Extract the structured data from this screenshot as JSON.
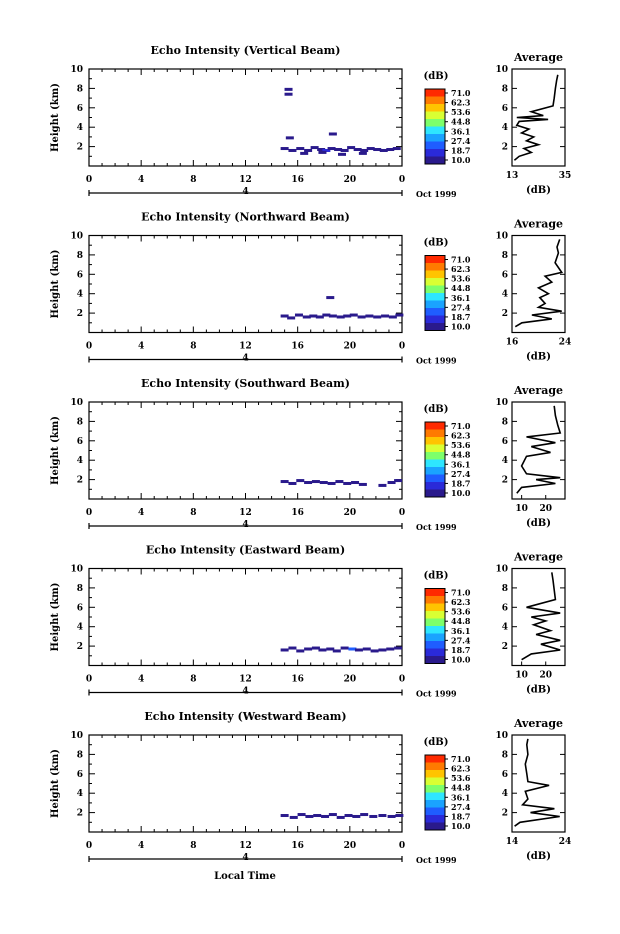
{
  "figure": {
    "xlabel": "Local Time",
    "date_label": "Oct 1999",
    "day_label": "4"
  },
  "colorbar": {
    "unit": "(dB)",
    "ticks": [
      "71.0",
      "62.3",
      "53.6",
      "44.8",
      "36.1",
      "27.4",
      "18.7",
      "10.0"
    ],
    "colors": [
      "#ff2a00",
      "#ff7a00",
      "#ffc400",
      "#d9ff33",
      "#7dff6b",
      "#2ee6ff",
      "#1aa3ff",
      "#1f5dff",
      "#2a2ad9",
      "#2a1a8c"
    ]
  },
  "chart_data": [
    {
      "type": "heatmap",
      "title": "Echo Intensity (Vertical Beam)",
      "ylabel": "Height (km)",
      "xticks": [
        "0",
        "4",
        "8",
        "12",
        "16",
        "20",
        "0"
      ],
      "yticks": [
        "2",
        "4",
        "6",
        "8",
        "10"
      ],
      "xlim": [
        0,
        24
      ],
      "ylim": [
        0,
        10
      ],
      "points": [
        [
          15.0,
          1.8,
          14
        ],
        [
          15.6,
          1.6,
          13
        ],
        [
          16.2,
          1.8,
          15
        ],
        [
          16.8,
          1.6,
          13
        ],
        [
          17.3,
          1.9,
          15
        ],
        [
          17.8,
          1.7,
          14
        ],
        [
          18.2,
          1.6,
          22
        ],
        [
          18.6,
          1.8,
          16
        ],
        [
          19.1,
          1.7,
          13
        ],
        [
          19.6,
          1.6,
          15
        ],
        [
          20.1,
          1.9,
          14
        ],
        [
          20.6,
          1.7,
          16
        ],
        [
          21.1,
          1.6,
          13
        ],
        [
          21.6,
          1.8,
          14
        ],
        [
          22.1,
          1.7,
          15
        ],
        [
          22.6,
          1.6,
          13
        ],
        [
          23.1,
          1.7,
          14
        ],
        [
          23.6,
          1.8,
          13
        ],
        [
          16.5,
          1.3,
          12
        ],
        [
          17.9,
          1.4,
          12
        ],
        [
          19.4,
          1.2,
          11
        ],
        [
          21.0,
          1.3,
          12
        ],
        [
          18.7,
          3.3,
          12
        ],
        [
          15.4,
          2.9,
          11
        ],
        [
          15.3,
          7.9,
          13
        ],
        [
          15.3,
          7.4,
          12
        ]
      ],
      "average": {
        "xticks": [
          "13",
          "35"
        ],
        "xlim": [
          13,
          35
        ],
        "xlabel": "(dB)",
        "title": "Average",
        "profile": [
          [
            14.0,
            0.6
          ],
          [
            16.0,
            1.0
          ],
          [
            21.0,
            1.4
          ],
          [
            18.0,
            1.8
          ],
          [
            24.0,
            2.2
          ],
          [
            19.0,
            2.6
          ],
          [
            22.0,
            3.0
          ],
          [
            17.0,
            3.4
          ],
          [
            20.0,
            3.8
          ],
          [
            15.0,
            4.2
          ],
          [
            16.0,
            4.6
          ],
          [
            28.0,
            4.8
          ],
          [
            15.0,
            5.0
          ],
          [
            26.0,
            5.2
          ],
          [
            21.0,
            5.6
          ],
          [
            30.0,
            6.2
          ],
          [
            30.5,
            7.0
          ],
          [
            31.0,
            8.0
          ],
          [
            31.5,
            8.8
          ],
          [
            32.0,
            9.4
          ]
        ]
      }
    },
    {
      "type": "heatmap",
      "title": "Echo Intensity (Northward Beam)",
      "ylabel": "Height (km)",
      "xticks": [
        "0",
        "4",
        "8",
        "12",
        "16",
        "20",
        "0"
      ],
      "yticks": [
        "2",
        "4",
        "6",
        "8",
        "10"
      ],
      "xlim": [
        0,
        24
      ],
      "ylim": [
        0,
        10
      ],
      "points": [
        [
          15.0,
          1.7,
          13
        ],
        [
          15.5,
          1.5,
          12
        ],
        [
          16.1,
          1.8,
          14
        ],
        [
          16.7,
          1.6,
          13
        ],
        [
          17.2,
          1.7,
          14
        ],
        [
          17.7,
          1.6,
          13
        ],
        [
          18.2,
          1.8,
          15
        ],
        [
          18.7,
          1.7,
          14
        ],
        [
          19.3,
          1.6,
          13
        ],
        [
          19.8,
          1.7,
          15
        ],
        [
          20.3,
          1.8,
          13
        ],
        [
          20.9,
          1.6,
          12
        ],
        [
          21.5,
          1.7,
          13
        ],
        [
          22.1,
          1.6,
          12
        ],
        [
          22.7,
          1.7,
          13
        ],
        [
          23.3,
          1.6,
          12
        ],
        [
          23.8,
          1.8,
          13
        ],
        [
          18.5,
          3.6,
          11
        ]
      ],
      "average": {
        "xticks": [
          "16",
          "24"
        ],
        "xlim": [
          16,
          24
        ],
        "xlabel": "(dB)",
        "title": "Average",
        "profile": [
          [
            16.5,
            0.6
          ],
          [
            17.5,
            1.0
          ],
          [
            22.0,
            1.4
          ],
          [
            19.0,
            1.8
          ],
          [
            23.5,
            2.2
          ],
          [
            20.0,
            2.6
          ],
          [
            21.0,
            3.0
          ],
          [
            20.2,
            3.6
          ],
          [
            21.5,
            4.0
          ],
          [
            20.0,
            4.6
          ],
          [
            22.0,
            5.2
          ],
          [
            21.0,
            5.8
          ],
          [
            23.5,
            6.2
          ],
          [
            22.5,
            7.2
          ],
          [
            23.0,
            8.2
          ],
          [
            22.8,
            8.8
          ],
          [
            23.2,
            9.6
          ]
        ]
      }
    },
    {
      "type": "heatmap",
      "title": "Echo Intensity (Southward Beam)",
      "ylabel": "Height (km)",
      "xticks": [
        "0",
        "4",
        "8",
        "12",
        "16",
        "20",
        "0"
      ],
      "yticks": [
        "2",
        "4",
        "6",
        "8",
        "10"
      ],
      "xlim": [
        0,
        24
      ],
      "ylim": [
        0,
        10
      ],
      "points": [
        [
          15.0,
          1.8,
          13
        ],
        [
          15.6,
          1.6,
          12
        ],
        [
          16.2,
          1.9,
          14
        ],
        [
          16.8,
          1.7,
          13
        ],
        [
          17.4,
          1.8,
          13
        ],
        [
          18.0,
          1.7,
          12
        ],
        [
          18.6,
          1.6,
          13
        ],
        [
          19.2,
          1.8,
          12
        ],
        [
          19.8,
          1.6,
          13
        ],
        [
          20.4,
          1.7,
          12
        ],
        [
          21.0,
          1.5,
          11
        ],
        [
          22.5,
          1.4,
          11
        ],
        [
          23.2,
          1.7,
          12
        ],
        [
          23.7,
          1.9,
          13
        ]
      ],
      "average": {
        "xticks": [
          "10",
          "20"
        ],
        "xlim": [
          6,
          28
        ],
        "xlabel": "(dB)",
        "title": "Average",
        "profile": [
          [
            8.0,
            0.6
          ],
          [
            10.0,
            1.2
          ],
          [
            24.0,
            1.6
          ],
          [
            16.0,
            2.0
          ],
          [
            26.0,
            2.2
          ],
          [
            12.0,
            2.6
          ],
          [
            10.0,
            3.4
          ],
          [
            12.0,
            4.4
          ],
          [
            22.0,
            4.8
          ],
          [
            14.0,
            5.4
          ],
          [
            24.0,
            5.8
          ],
          [
            12.0,
            6.4
          ],
          [
            26.0,
            6.8
          ],
          [
            25.0,
            7.6
          ],
          [
            24.0,
            8.6
          ],
          [
            23.5,
            9.6
          ]
        ]
      }
    },
    {
      "type": "heatmap",
      "title": "Echo Intensity (Eastward Beam)",
      "ylabel": "Height (km)",
      "xticks": [
        "0",
        "4",
        "8",
        "12",
        "16",
        "20",
        "0"
      ],
      "yticks": [
        "2",
        "4",
        "6",
        "8",
        "10"
      ],
      "xlim": [
        0,
        24
      ],
      "ylim": [
        0,
        10
      ],
      "points": [
        [
          15.0,
          1.6,
          13
        ],
        [
          15.6,
          1.8,
          12
        ],
        [
          16.2,
          1.5,
          14
        ],
        [
          16.8,
          1.7,
          13
        ],
        [
          17.4,
          1.8,
          14
        ],
        [
          17.9,
          1.6,
          13
        ],
        [
          18.5,
          1.7,
          12
        ],
        [
          19.0,
          1.5,
          15
        ],
        [
          19.6,
          1.8,
          13
        ],
        [
          20.2,
          1.7,
          25
        ],
        [
          20.7,
          1.6,
          13
        ],
        [
          21.3,
          1.7,
          12
        ],
        [
          21.9,
          1.5,
          13
        ],
        [
          22.5,
          1.6,
          12
        ],
        [
          23.1,
          1.7,
          13
        ],
        [
          23.7,
          1.8,
          12
        ]
      ],
      "average": {
        "xticks": [
          "10",
          "20"
        ],
        "xlim": [
          6,
          28
        ],
        "xlabel": "(dB)",
        "title": "Average",
        "profile": [
          [
            10.0,
            0.6
          ],
          [
            14.0,
            1.2
          ],
          [
            26.0,
            1.6
          ],
          [
            18.0,
            2.2
          ],
          [
            26.0,
            2.6
          ],
          [
            16.0,
            3.2
          ],
          [
            22.0,
            3.6
          ],
          [
            15.0,
            4.2
          ],
          [
            20.0,
            4.6
          ],
          [
            14.0,
            5.0
          ],
          [
            26.0,
            5.4
          ],
          [
            12.0,
            6.0
          ],
          [
            24.0,
            6.8
          ],
          [
            23.5,
            7.8
          ],
          [
            23.0,
            8.8
          ],
          [
            22.5,
            9.6
          ]
        ]
      }
    },
    {
      "type": "heatmap",
      "title": "Echo Intensity (Westward Beam)",
      "ylabel": "Height (km)",
      "xticks": [
        "0",
        "4",
        "8",
        "12",
        "16",
        "20",
        "0"
      ],
      "yticks": [
        "2",
        "4",
        "6",
        "8",
        "10"
      ],
      "xlim": [
        0,
        24
      ],
      "ylim": [
        0,
        10
      ],
      "points": [
        [
          15.0,
          1.7,
          13
        ],
        [
          15.7,
          1.5,
          12
        ],
        [
          16.3,
          1.8,
          14
        ],
        [
          16.9,
          1.6,
          13
        ],
        [
          17.5,
          1.7,
          14
        ],
        [
          18.1,
          1.6,
          13
        ],
        [
          18.7,
          1.8,
          12
        ],
        [
          19.3,
          1.5,
          13
        ],
        [
          19.9,
          1.7,
          12
        ],
        [
          20.5,
          1.6,
          13
        ],
        [
          21.1,
          1.8,
          12
        ],
        [
          21.8,
          1.6,
          13
        ],
        [
          22.5,
          1.7,
          12
        ],
        [
          23.2,
          1.6,
          13
        ],
        [
          23.8,
          1.7,
          12
        ]
      ],
      "average": {
        "xticks": [
          "14",
          "24"
        ],
        "xlim": [
          14,
          24
        ],
        "xlabel": "(dB)",
        "title": "Average",
        "profile": [
          [
            14.5,
            0.6
          ],
          [
            15.5,
            1.0
          ],
          [
            23.0,
            1.6
          ],
          [
            17.5,
            2.0
          ],
          [
            22.0,
            2.4
          ],
          [
            16.0,
            2.8
          ],
          [
            17.0,
            3.4
          ],
          [
            16.5,
            4.2
          ],
          [
            21.0,
            4.8
          ],
          [
            17.0,
            5.2
          ],
          [
            16.8,
            6.0
          ],
          [
            16.5,
            7.0
          ],
          [
            17.0,
            8.0
          ],
          [
            16.8,
            9.0
          ],
          [
            17.0,
            9.6
          ]
        ]
      }
    }
  ]
}
